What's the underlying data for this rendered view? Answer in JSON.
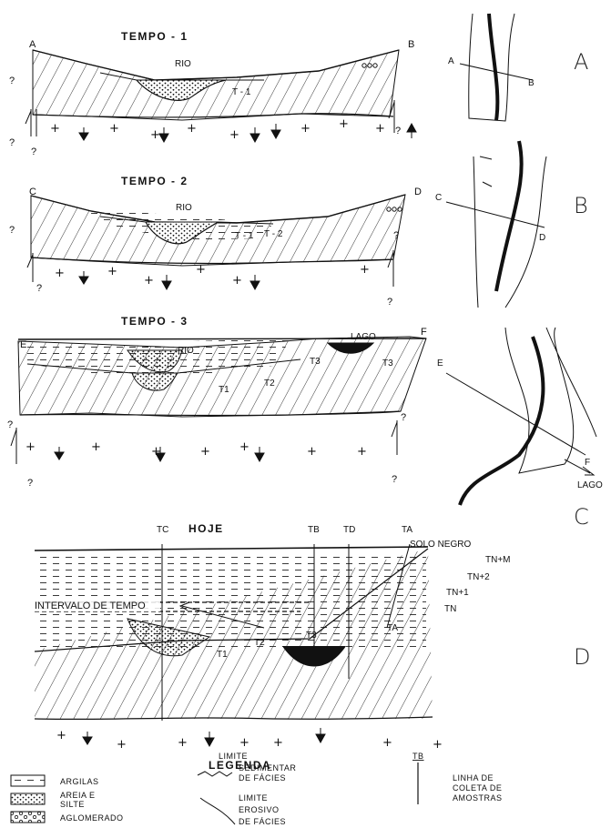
{
  "sections": [
    {
      "title": "TEMPO - 1",
      "river_label": "RIO",
      "left_point": "A",
      "right_point": "B",
      "terrace_labels": [
        "T - 1"
      ],
      "question_mark": "?",
      "map_points": [
        "A",
        "B"
      ],
      "panel_letter": "A"
    },
    {
      "title": "TEMPO - 2",
      "river_label": "RIO",
      "left_point": "C",
      "right_point": "D",
      "terrace_labels": [
        "T - 1",
        "T - 2"
      ],
      "question_mark": "?",
      "map_points": [
        "C",
        "D"
      ],
      "panel_letter": "B"
    },
    {
      "title": "TEMPO - 3",
      "river_label": "RIO",
      "lake_label": "LAGO",
      "left_point": "E",
      "right_point": "F",
      "terrace_labels": [
        "T1",
        "T2",
        "T3",
        "T3"
      ],
      "question_mark": "?",
      "map_points": [
        "E",
        "F"
      ],
      "map_lake_label": "LAGO",
      "panel_letter": "C"
    },
    {
      "title": "HOJE",
      "columns": [
        "TC",
        "TB",
        "TD",
        "TA"
      ],
      "soil_label": "SOLO NEGRO",
      "layer_labels": [
        "TN+M",
        "TN+2",
        "TN+1",
        "TN",
        "TA"
      ],
      "terrace_labels": [
        "T1",
        "T2",
        "T3"
      ],
      "interval_label": "INTERVALO DE TEMPO",
      "panel_letter": "D"
    }
  ],
  "legend": {
    "title": "LEGENDA",
    "items": [
      {
        "label": "ARGILAS"
      },
      {
        "label_lines": [
          "AREIA E",
          "SILTE"
        ]
      },
      {
        "label": "AGLOMERADO"
      },
      {
        "label_lines": [
          "LIMITE",
          "SEDIMENTAR",
          "DE FÁCIES"
        ]
      },
      {
        "label_lines": [
          "LIMITE",
          "EROSIVO",
          "DE FÁCIES"
        ]
      },
      {
        "symbol_label": "TB",
        "label_lines": [
          "LINHA DE",
          "COLETA DE",
          "AMOSTRAS"
        ]
      }
    ]
  }
}
